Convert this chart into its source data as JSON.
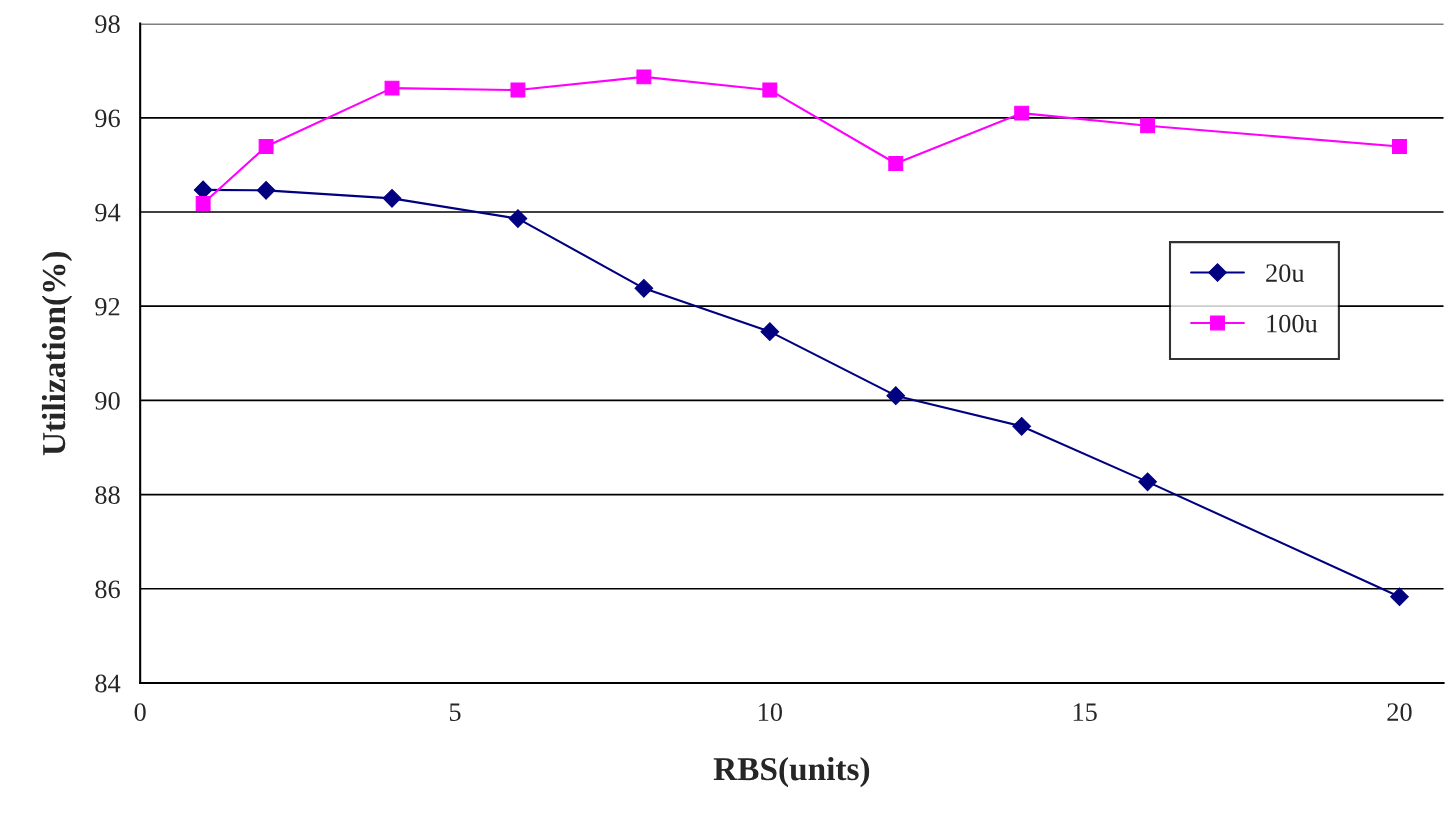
{
  "chart_data": {
    "type": "line",
    "xlabel": "RBS(units)",
    "ylabel": "Utilization(%)",
    "x": [
      1,
      2,
      4,
      6,
      8,
      10,
      12,
      14,
      16,
      20
    ],
    "series": [
      {
        "name": "20u",
        "color": "#000080",
        "marker": "diamond",
        "values": [
          94.47,
          94.46,
          94.29,
          93.86,
          92.38,
          91.46,
          90.1,
          89.45,
          88.27,
          85.83
        ]
      },
      {
        "name": "100u",
        "color": "#ff00ff",
        "marker": "square",
        "values": [
          94.18,
          95.39,
          96.63,
          96.59,
          96.87,
          96.59,
          95.03,
          96.1,
          95.83,
          95.39
        ]
      }
    ],
    "xlim": [
      0,
      20.7
    ],
    "xticks": [
      0,
      5,
      10,
      15,
      20
    ],
    "ylim": [
      84,
      98
    ],
    "yticks": [
      84,
      86,
      88,
      90,
      92,
      94,
      96,
      98
    ],
    "grid": "y",
    "legend": "right",
    "line_style": "solid"
  }
}
